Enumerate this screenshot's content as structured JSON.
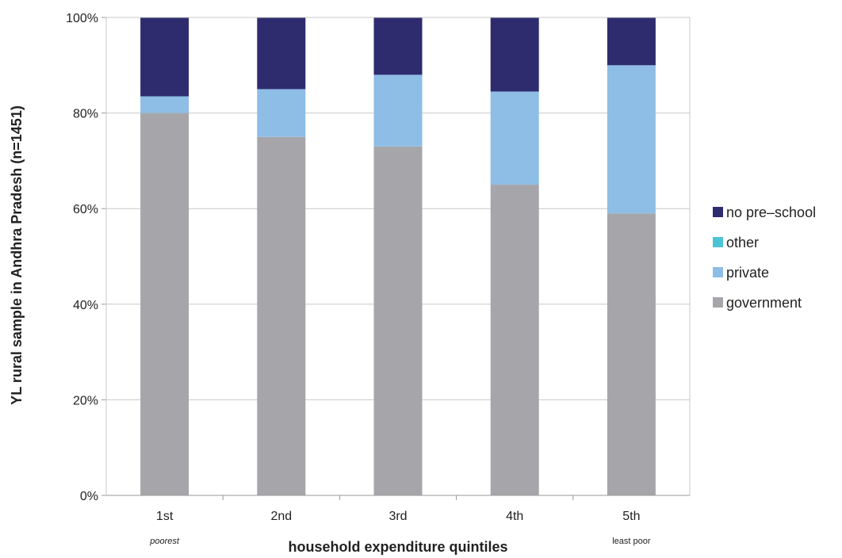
{
  "chart_data": {
    "type": "bar",
    "stacked": true,
    "percent": true,
    "categories": [
      "1st",
      "2nd",
      "3rd",
      "4th",
      "5th"
    ],
    "category_sublabels": [
      "poorest",
      "",
      "",
      "",
      "least poor"
    ],
    "series": [
      {
        "name": "government",
        "values": [
          80,
          75,
          73,
          65,
          59
        ],
        "color": "#a6a6aa"
      },
      {
        "name": "private",
        "values": [
          3.5,
          10,
          15,
          19.5,
          31
        ],
        "color": "#8ebde6"
      },
      {
        "name": "other",
        "values": [
          0,
          0,
          0,
          0,
          0
        ],
        "color": "#4cc4d6"
      },
      {
        "name": "no pre–school",
        "values": [
          16.5,
          15,
          12,
          15.5,
          10
        ],
        "color": "#2e2c6e"
      }
    ],
    "legend_order": [
      "no pre–school",
      "other",
      "private",
      "government"
    ],
    "legend_position": "right",
    "xlabel": "household expenditure quintiles",
    "ylabel": "YL rural sample in Andhra Pradesh (n=1451)",
    "ylim": [
      0,
      100
    ],
    "yticks": [
      "0%",
      "20%",
      "40%",
      "60%",
      "80%",
      "100%"
    ],
    "grid": true
  }
}
